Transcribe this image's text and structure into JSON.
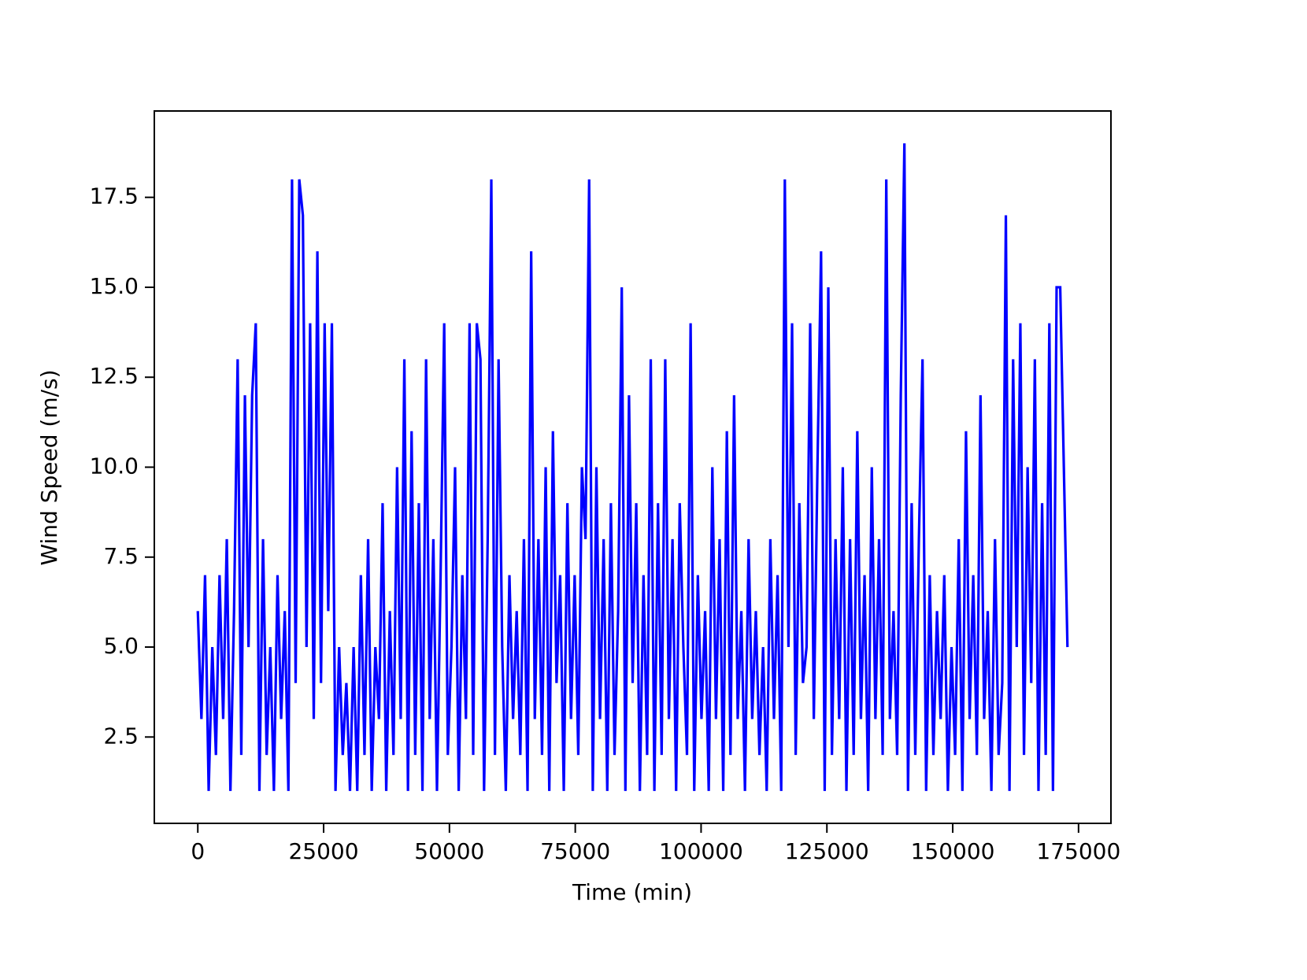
{
  "chart_data": {
    "type": "line",
    "xlabel": "Time (min)",
    "ylabel": "Wind Speed (m/s)",
    "color": "#0000ff",
    "xlim": [
      -8640,
      181440
    ],
    "ylim": [
      0.1,
      19.9
    ],
    "xticks": [
      0,
      25000,
      50000,
      75000,
      100000,
      125000,
      150000,
      175000
    ],
    "yticks": [
      2.5,
      {
        "value": 5,
        "label": "5.0"
      },
      7.5,
      {
        "value": 10,
        "label": "10.0"
      },
      12.5,
      {
        "value": 15,
        "label": "15.0"
      },
      17.5
    ],
    "grid": false,
    "x": [
      0,
      720,
      1440,
      2160,
      2880,
      3600,
      4320,
      5040,
      5760,
      6480,
      7200,
      7920,
      8640,
      9360,
      10080,
      10800,
      11520,
      12240,
      12960,
      13680,
      14400,
      15120,
      15840,
      16560,
      17280,
      18000,
      18720,
      19440,
      20160,
      20880,
      21600,
      22320,
      23040,
      23760,
      24480,
      25200,
      25920,
      26640,
      27360,
      28080,
      28800,
      29520,
      30240,
      30960,
      31680,
      32400,
      33120,
      33840,
      34560,
      35280,
      36000,
      36720,
      37440,
      38160,
      38880,
      39600,
      40320,
      41040,
      41760,
      42480,
      43200,
      43920,
      44640,
      45360,
      46080,
      46800,
      47520,
      48240,
      48960,
      49680,
      50400,
      51120,
      51840,
      52560,
      53280,
      54000,
      54720,
      55440,
      56160,
      56880,
      57600,
      58320,
      59040,
      59760,
      60480,
      61200,
      61920,
      62640,
      63360,
      64080,
      64800,
      65520,
      66240,
      66960,
      67680,
      68400,
      69120,
      69840,
      70560,
      71280,
      72000,
      72720,
      73440,
      74160,
      74880,
      75600,
      76320,
      77040,
      77760,
      78480,
      79200,
      79920,
      80640,
      81360,
      82080,
      82800,
      83520,
      84240,
      84960,
      85680,
      86400,
      87120,
      87840,
      88560,
      89280,
      90000,
      90720,
      91440,
      92160,
      92880,
      93600,
      94320,
      95040,
      95760,
      96480,
      97200,
      97920,
      98640,
      99360,
      100080,
      100800,
      101520,
      102240,
      102960,
      103680,
      104400,
      105120,
      105840,
      106560,
      107280,
      108000,
      108720,
      109440,
      110160,
      110880,
      111600,
      112320,
      113040,
      113760,
      114480,
      115200,
      115920,
      116640,
      117360,
      118080,
      118800,
      119520,
      120240,
      120960,
      121680,
      122400,
      123120,
      123840,
      124560,
      125280,
      126000,
      126720,
      127440,
      128160,
      128880,
      129600,
      130320,
      131040,
      131760,
      132480,
      133200,
      133920,
      134640,
      135360,
      136080,
      136800,
      137520,
      138240,
      138960,
      139680,
      140400,
      141120,
      141840,
      142560,
      143280,
      144000,
      144720,
      145440,
      146160,
      146880,
      147600,
      148320,
      149040,
      149760,
      150480,
      151200,
      151920,
      152640,
      153360,
      154080,
      154800,
      155520,
      156240,
      156960,
      157680,
      158400,
      159120,
      159840,
      160560,
      161280,
      162000,
      162720,
      163440,
      164160,
      164880,
      165600,
      166320,
      167040,
      167760,
      168480,
      169200,
      169920,
      170640,
      171360,
      172080,
      172800
    ],
    "values": [
      6,
      3,
      7,
      1,
      5,
      2,
      7,
      3,
      8,
      1,
      6,
      13,
      2,
      12,
      5,
      12,
      14,
      1,
      8,
      2,
      5,
      1,
      7,
      3,
      6,
      1,
      18,
      4,
      18,
      17,
      5,
      14,
      3,
      16,
      4,
      14,
      6,
      14,
      1,
      5,
      2,
      4,
      1,
      5,
      1,
      7,
      2,
      8,
      1,
      5,
      3,
      9,
      1,
      6,
      2,
      10,
      3,
      13,
      1,
      11,
      2,
      9,
      1,
      13,
      3,
      8,
      1,
      7,
      14,
      2,
      5,
      10,
      1,
      7,
      3,
      14,
      2,
      14,
      13,
      1,
      8,
      18,
      2,
      13,
      5,
      1,
      7,
      3,
      6,
      2,
      8,
      1,
      16,
      3,
      8,
      2,
      10,
      1,
      11,
      4,
      7,
      1,
      9,
      3,
      7,
      2,
      10,
      8,
      18,
      1,
      10,
      3,
      8,
      1,
      9,
      2,
      6,
      15,
      1,
      12,
      4,
      9,
      1,
      7,
      2,
      13,
      1,
      9,
      2,
      13,
      3,
      8,
      1,
      9,
      5,
      2,
      14,
      1,
      7,
      3,
      6,
      1,
      10,
      3,
      8,
      1,
      11,
      2,
      12,
      3,
      6,
      1,
      8,
      3,
      6,
      2,
      5,
      1,
      8,
      3,
      7,
      1,
      18,
      5,
      14,
      2,
      9,
      4,
      5,
      14,
      3,
      10,
      16,
      1,
      15,
      2,
      8,
      3,
      10,
      1,
      8,
      2,
      11,
      3,
      7,
      1,
      10,
      3,
      8,
      2,
      18,
      3,
      6,
      2,
      12,
      19,
      1,
      9,
      2,
      8,
      13,
      1,
      7,
      2,
      6,
      3,
      7,
      1,
      5,
      2,
      8,
      1,
      11,
      3,
      7,
      2,
      12,
      3,
      6,
      1,
      8,
      2,
      4,
      17,
      1,
      13,
      5,
      14,
      2,
      10,
      4,
      13,
      1,
      9,
      2,
      14,
      1,
      15,
      15,
      10,
      5
    ]
  }
}
